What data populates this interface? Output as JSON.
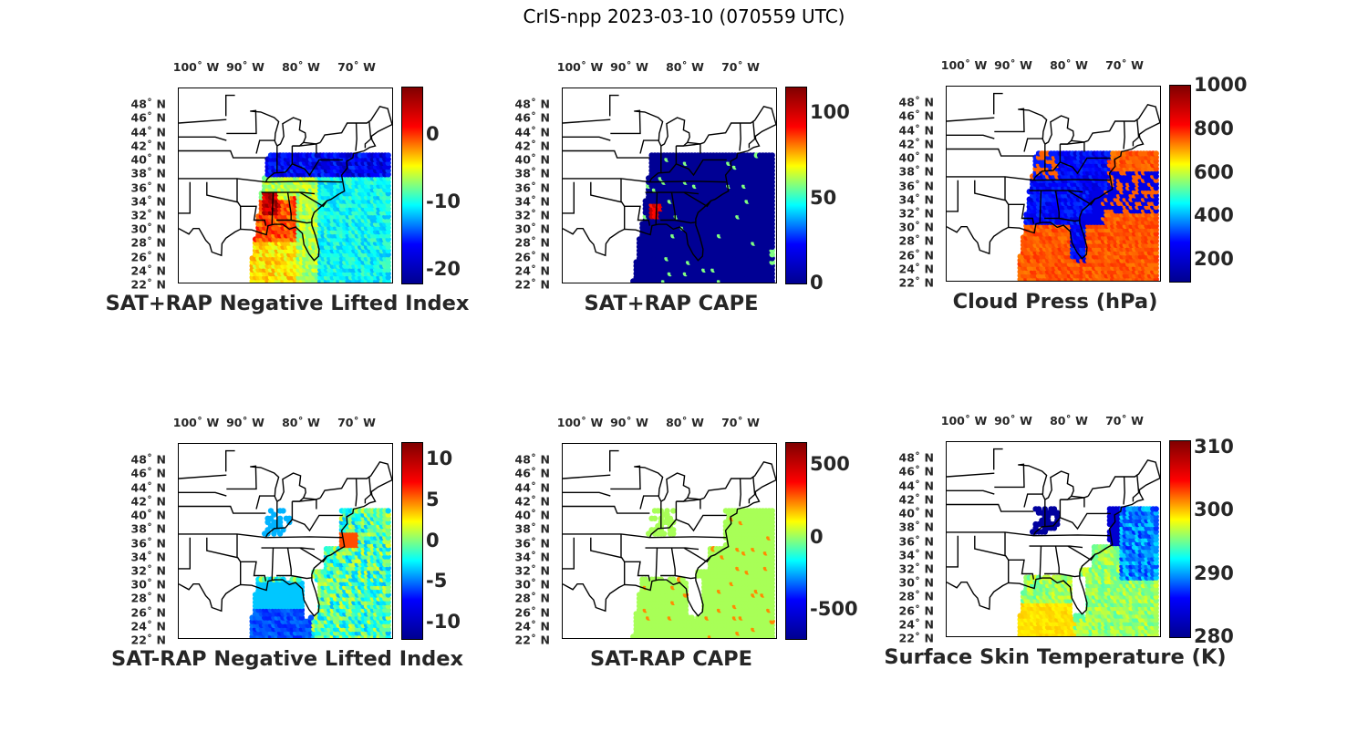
{
  "figure_title": "CrIS-npp 2023-03-10 (070559 UTC)",
  "colormap": "jet",
  "colors": {
    "jet": [
      "#00008f",
      "#0000ff",
      "#00ffff",
      "#ffff00",
      "#ff0000",
      "#800000"
    ],
    "map_outline": "#000000",
    "background": "#ffffff"
  },
  "map": {
    "lon_labels": [
      "100˚ W",
      "90˚ W",
      "80˚ W",
      "70˚ W"
    ],
    "lat_labels": [
      "48˚ N",
      "46˚ N",
      "44˚ N",
      "42˚ N",
      "40˚ N",
      "38˚ N",
      "36˚ N",
      "34˚ N",
      "32˚ N",
      "30˚ N",
      "28˚ N",
      "26˚ N",
      "24˚ N",
      "22˚ N"
    ]
  },
  "panels": [
    {
      "title": "SAT+RAP Negative Lifted Index",
      "colorbar": {
        "min": -22,
        "max": 7,
        "ticks": [
          "0",
          "-10",
          "-20"
        ],
        "tick_values": [
          0,
          -10,
          -20
        ]
      },
      "field": "nli_sum"
    },
    {
      "title": "SAT+RAP CAPE",
      "colorbar": {
        "min": 0,
        "max": 115,
        "ticks": [
          "100",
          "50",
          "0"
        ],
        "tick_values": [
          100,
          50,
          0
        ]
      },
      "field": "cape_sum"
    },
    {
      "title": "Cloud Press (hPa)",
      "colorbar": {
        "min": 100,
        "max": 1000,
        "ticks": [
          "1000",
          "800",
          "600",
          "400",
          "200"
        ],
        "tick_values": [
          1000,
          800,
          600,
          400,
          200
        ]
      },
      "field": "cloud_press"
    },
    {
      "title": "SAT-RAP Negative Lifted Index",
      "colorbar": {
        "min": -12,
        "max": 12,
        "ticks": [
          "10",
          "5",
          "0",
          "-5",
          "-10"
        ],
        "tick_values": [
          10,
          5,
          0,
          -5,
          -10
        ]
      },
      "field": "nli_diff"
    },
    {
      "title": "SAT-RAP CAPE",
      "colorbar": {
        "min": -700,
        "max": 650,
        "ticks": [
          "500",
          "0",
          "-500"
        ],
        "tick_values": [
          500,
          0,
          -500
        ]
      },
      "field": "cape_diff"
    },
    {
      "title": "Surface Skin Temperature (K)",
      "colorbar": {
        "min": 280,
        "max": 311,
        "ticks": [
          "310",
          "300",
          "290",
          "280"
        ],
        "tick_values": [
          310,
          300,
          290,
          280
        ]
      },
      "field": "skin_temp"
    }
  ]
}
